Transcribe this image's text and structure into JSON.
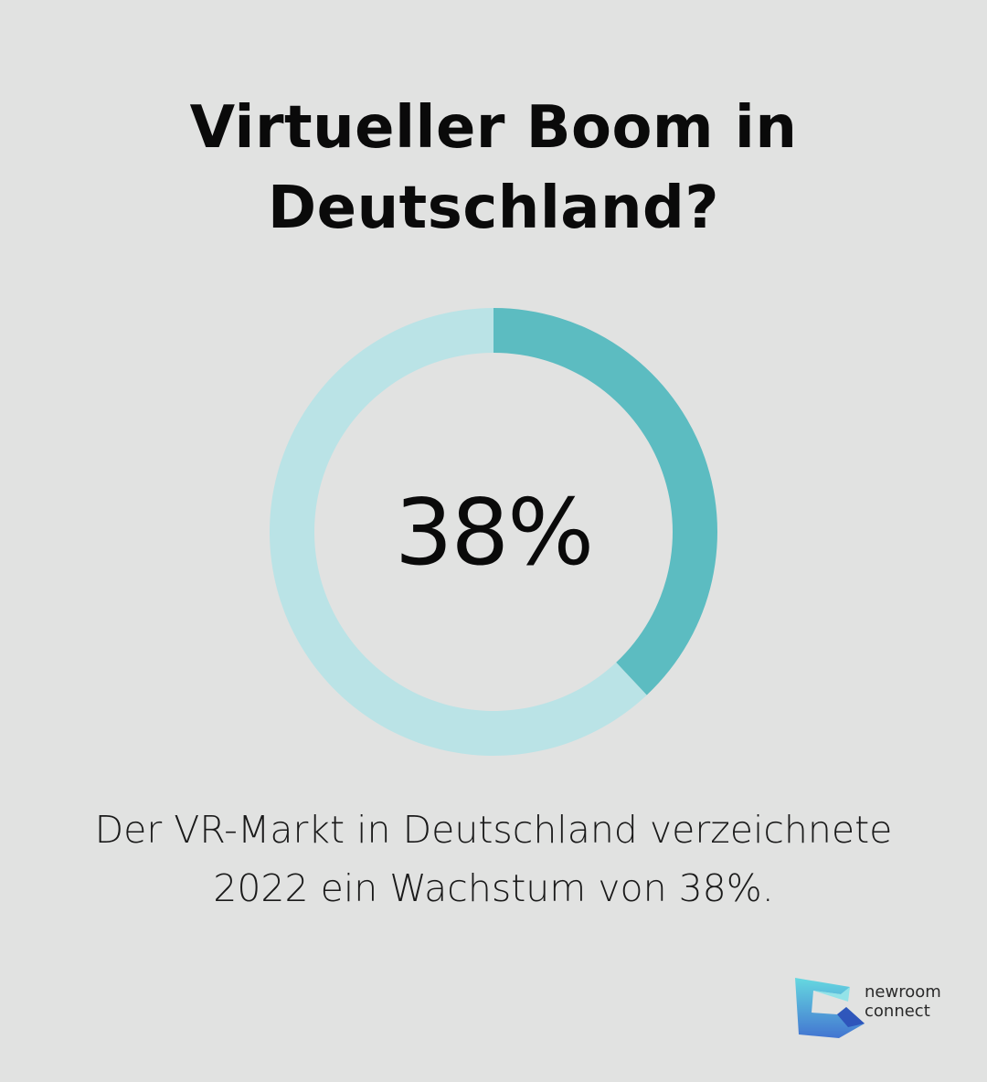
{
  "title": {
    "line1": "Virtueller Boom in",
    "line2": "Deutschland?"
  },
  "chart_data": {
    "type": "pie",
    "variant": "donut",
    "value_label": "38%",
    "values": [
      38,
      62
    ],
    "colors": {
      "highlight": "#5cbcc1",
      "remainder": "#bae3e6"
    }
  },
  "caption": {
    "line1": "Der VR-Markt in Deutschland verzeichnete",
    "line2": "2022 ein Wachstum von 38%."
  },
  "logo": {
    "line1": "newroom",
    "line2": "connect",
    "icon": "newroom-connect-logo-icon"
  }
}
